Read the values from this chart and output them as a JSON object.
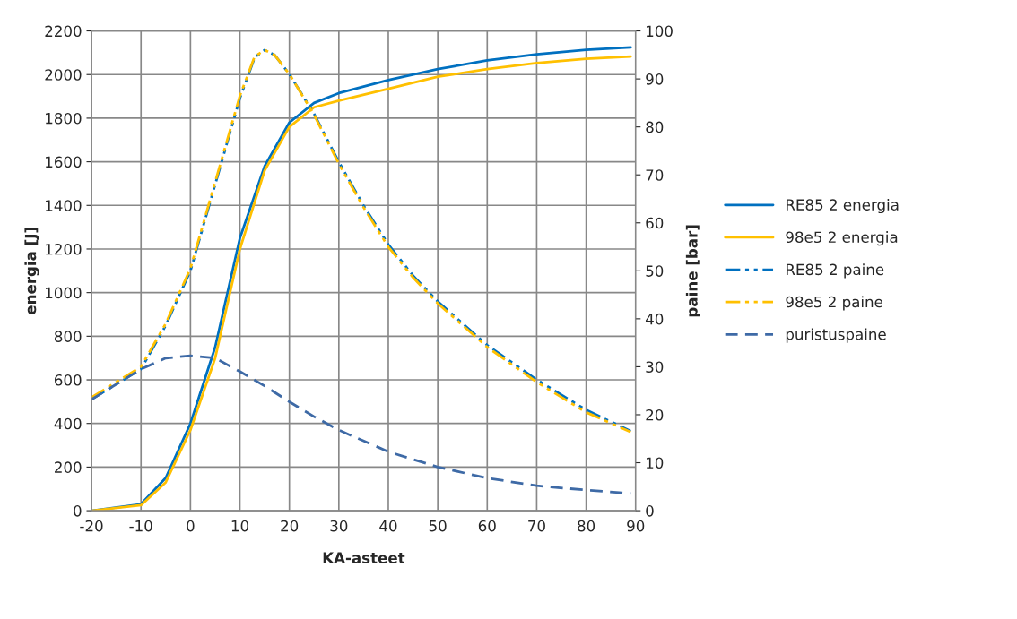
{
  "chart_data": {
    "type": "line",
    "xlabel": "KA-asteet",
    "ylabel": "energia [J]",
    "y2label": "paine [bar]",
    "xlim": [
      -20,
      90
    ],
    "xticks": [
      -20,
      -10,
      0,
      10,
      20,
      30,
      40,
      50,
      60,
      70,
      80,
      90
    ],
    "ylim": [
      0,
      2200
    ],
    "yticks": [
      0,
      200,
      400,
      600,
      800,
      1000,
      1200,
      1400,
      1600,
      1800,
      2000,
      2200
    ],
    "y2lim": [
      0,
      100
    ],
    "y2ticks": [
      0,
      10,
      20,
      30,
      40,
      50,
      60,
      70,
      80,
      90,
      100
    ],
    "grid": true,
    "legend": "right",
    "x": [
      -20,
      -10,
      -5,
      0,
      5,
      10,
      15,
      20,
      25,
      30,
      40,
      50,
      60,
      70,
      80,
      89
    ],
    "series": [
      {
        "name": "RE85 2 energia",
        "color": "#0070c0",
        "line_style": "solid",
        "values": [
          0,
          30,
          150,
          400,
          750,
          1250,
          1580,
          1780,
          1870,
          1915,
          1975,
          2025,
          2065,
          2093,
          2113,
          2125
        ]
      },
      {
        "name": "98e5 2 energia",
        "color": "#ffc000",
        "line_style": "solid",
        "values": [
          0,
          25,
          130,
          370,
          700,
          1200,
          1560,
          1760,
          1850,
          1880,
          1935,
          1990,
          2025,
          2053,
          2072,
          2083
        ]
      },
      {
        "name": "RE85 2 paine",
        "color": "#0070c0",
        "line_style": "dashdot",
        "axis": "y2",
        "x": [
          -20,
          -10,
          -5,
          0,
          5,
          10,
          13,
          15,
          17,
          20,
          25,
          30,
          35,
          40,
          45,
          50,
          60,
          70,
          80,
          89
        ],
        "values": [
          23.2,
          29.5,
          38.6,
          50,
          68,
          86,
          94.5,
          96,
          95,
          91,
          82.7,
          72.7,
          63.6,
          55.5,
          49,
          43.6,
          34.5,
          27.3,
          21,
          16.6
        ]
      },
      {
        "name": "98e5 2 paine",
        "color": "#ffc000",
        "line_style": "dashdot",
        "axis": "y2",
        "x": [
          -20,
          -10,
          -5,
          0,
          5,
          10,
          13,
          15,
          17,
          20,
          25,
          30,
          35,
          40,
          45,
          50,
          60,
          70,
          80,
          89
        ],
        "values": [
          23.6,
          30,
          39,
          50.5,
          68.5,
          86.5,
          94.7,
          96,
          95,
          91,
          82.5,
          72.3,
          63.2,
          55,
          48.6,
          43.2,
          34.1,
          26.8,
          20.5,
          16.4
        ]
      },
      {
        "name": "puristuspaine",
        "color": "#3e6aa6",
        "line_style": "dashed",
        "axis": "y2",
        "values": [
          23.2,
          29.5,
          31.8,
          32.3,
          31.8,
          29,
          26,
          22.7,
          19.6,
          16.8,
          12.3,
          9.1,
          6.8,
          5.2,
          4.3,
          3.6
        ]
      }
    ]
  }
}
